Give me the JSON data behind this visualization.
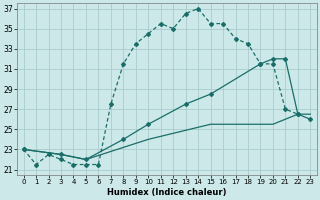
{
  "xlabel": "Humidex (Indice chaleur)",
  "xlim": [
    -0.5,
    23.5
  ],
  "ylim": [
    20.5,
    37.5
  ],
  "xticks": [
    0,
    1,
    2,
    3,
    4,
    5,
    6,
    7,
    8,
    9,
    10,
    11,
    12,
    13,
    14,
    15,
    16,
    17,
    18,
    19,
    20,
    21,
    22,
    23
  ],
  "yticks": [
    21,
    23,
    25,
    27,
    29,
    31,
    33,
    35,
    37
  ],
  "bg_color": "#cce8e8",
  "grid_color": "#aacccc",
  "line_color": "#1a6e6a",
  "line1_x": [
    0,
    1,
    2,
    3,
    4,
    5,
    6,
    7,
    8,
    9,
    10,
    11,
    12,
    13,
    14,
    15,
    16,
    17,
    18,
    19,
    20,
    21,
    22
  ],
  "line1_y": [
    23,
    21.5,
    22.5,
    22,
    21.5,
    21.5,
    21.5,
    27.5,
    31.5,
    33.5,
    34.5,
    35.5,
    35.0,
    36.5,
    37.0,
    35.5,
    35.5,
    34.0,
    33.5,
    31.5,
    31.5,
    27.0,
    26.5
  ],
  "line2_x": [
    0,
    3,
    5,
    8,
    10,
    13,
    15,
    19,
    20,
    21,
    22,
    23
  ],
  "line2_y": [
    23,
    22.5,
    22.0,
    24.0,
    25.5,
    27.5,
    28.5,
    31.5,
    32.0,
    32.0,
    26.5,
    26.0
  ],
  "line3_x": [
    0,
    3,
    5,
    10,
    15,
    20,
    22,
    23
  ],
  "line3_y": [
    23,
    22.5,
    22.0,
    24.0,
    25.5,
    25.5,
    26.5,
    26.5
  ]
}
